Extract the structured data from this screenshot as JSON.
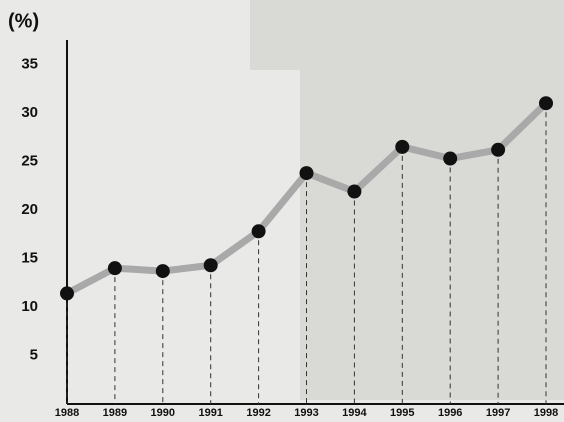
{
  "chart_data": {
    "type": "line",
    "title": "(%)",
    "categories": [
      "1988",
      "1989",
      "1990",
      "1991",
      "1992",
      "1993",
      "1994",
      "1995",
      "1996",
      "1997",
      "1998"
    ],
    "values": [
      11.4,
      14.0,
      13.7,
      14.3,
      17.8,
      23.8,
      21.9,
      26.5,
      25.3,
      26.2,
      31.0
    ],
    "color": "#a9a9a9",
    "marker_color": "#111111",
    "ylim": [
      0,
      37
    ],
    "yticks": [
      5,
      10,
      15,
      20,
      25,
      30,
      35
    ],
    "grid": false
  }
}
